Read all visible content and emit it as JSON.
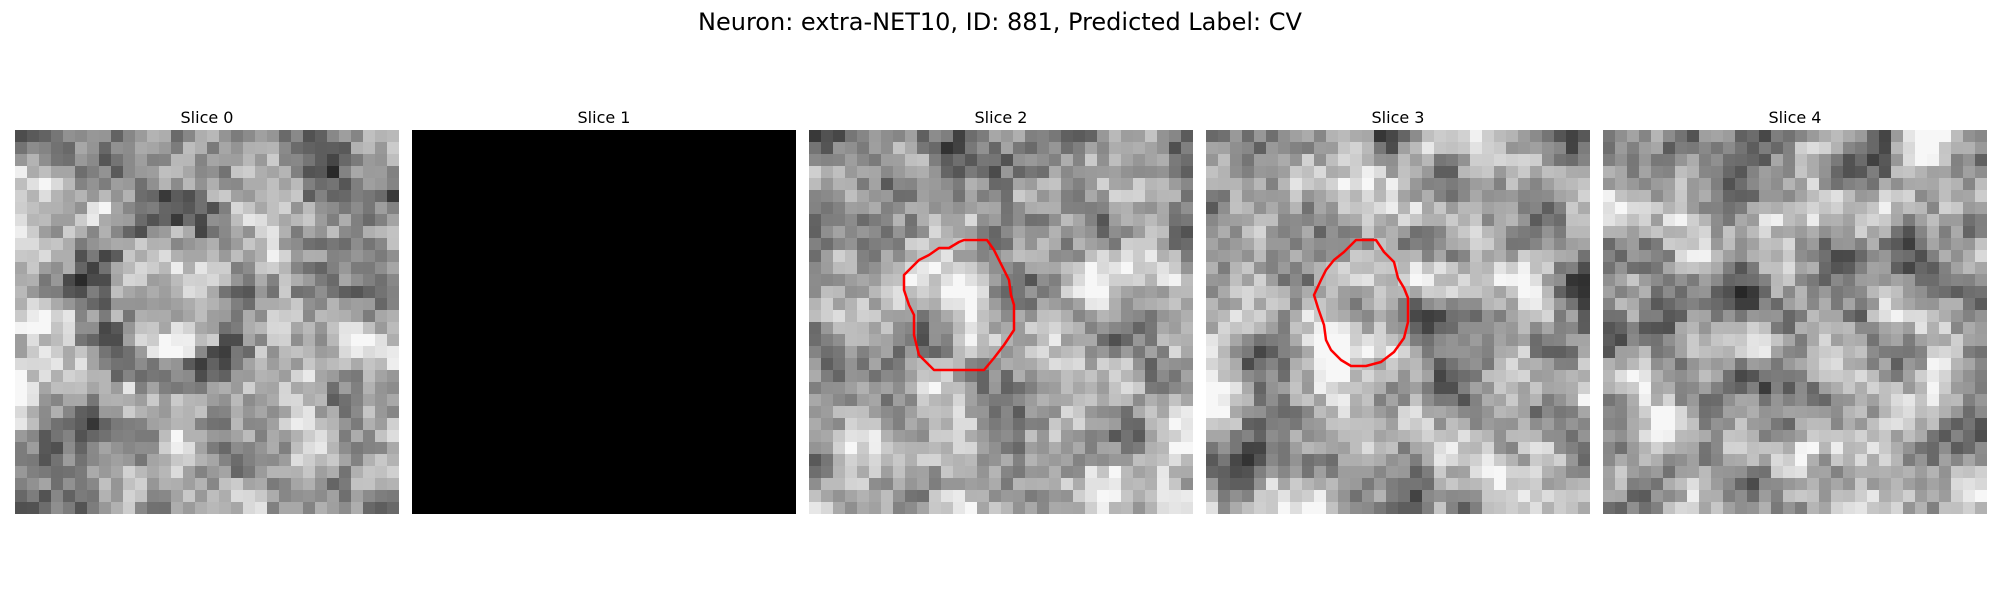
{
  "figure": {
    "title": "Neuron: extra-NET10, ID: 881, Predicted Label: CV"
  },
  "slices": [
    {
      "label": "Slice 0",
      "contour": false,
      "blank": false,
      "seed": 11
    },
    {
      "label": "Slice 1",
      "contour": false,
      "blank": true,
      "seed": 22
    },
    {
      "label": "Slice 2",
      "contour": true,
      "blank": false,
      "seed": 33
    },
    {
      "label": "Slice 3",
      "contour": true,
      "blank": false,
      "seed": 44
    },
    {
      "label": "Slice 4",
      "contour": false,
      "blank": false,
      "seed": 55
    }
  ],
  "colors": {
    "contour": "#ff0000",
    "blank_fill": "#000000"
  }
}
